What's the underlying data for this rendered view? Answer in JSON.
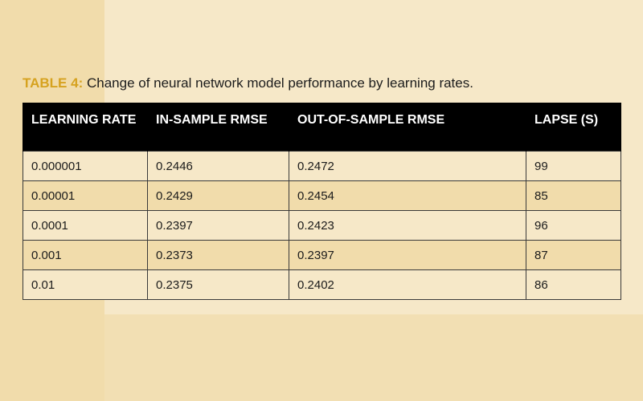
{
  "caption": {
    "label": "TABLE 4:",
    "text": " Change of neural network model performance by learning rates."
  },
  "table": {
    "headers": [
      "LEARNING RATE",
      "IN-SAMPLE RMSE",
      "OUT-OF-SAMPLE RMSE",
      "LAPSE (S)"
    ],
    "rows": [
      [
        "0.000001",
        "0.2446",
        "0.2472",
        "99"
      ],
      [
        "0.00001",
        "0.2429",
        "0.2454",
        "85"
      ],
      [
        "0.0001",
        "0.2397",
        "0.2423",
        "96"
      ],
      [
        "0.001",
        "0.2373",
        "0.2397",
        "87"
      ],
      [
        "0.01",
        "0.2375",
        "0.2402",
        "86"
      ]
    ]
  },
  "colors": {
    "caption_label": "#d6a21f",
    "header_background": "#000000",
    "header_text": "#ffffff",
    "row_light": "#f6e8c8",
    "row_dark": "#f1dcab",
    "page_background": "#f3e1b6"
  }
}
